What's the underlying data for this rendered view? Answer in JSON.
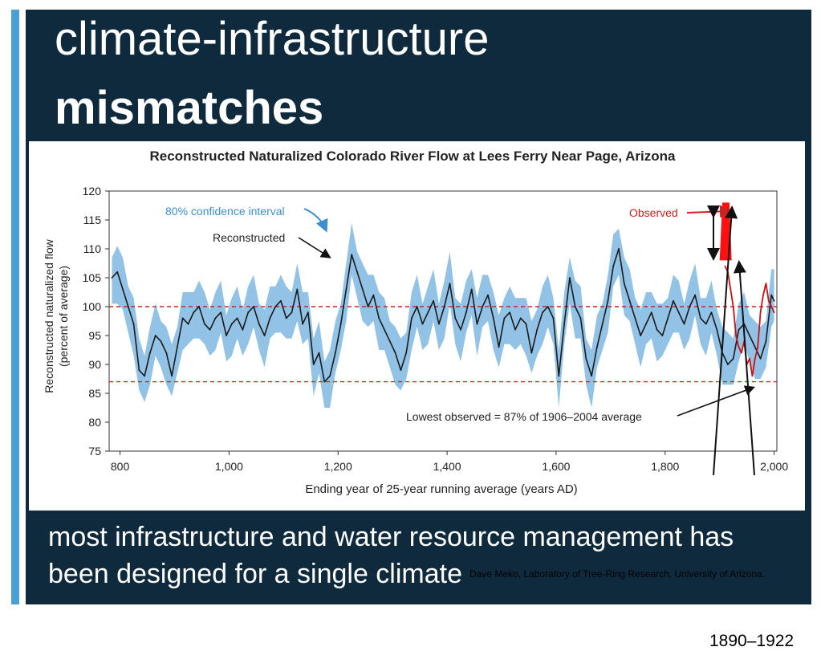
{
  "slide": {
    "title_line1": "climate-infrastructure",
    "title_line2": "mismatches",
    "caption": "most infrastructure and water resource management has been designed for a single climate",
    "credit": "Dave Meko, Laboratory of Tree-Ring Research, University of Arizona.",
    "period_label": "1890–1922",
    "colors": {
      "panel": "#0f2a3d",
      "accent": "#4a9fd5",
      "band": "#7fb8e2",
      "line": "#1a1a1a",
      "observed": "#cc1111",
      "reference": "#cc2222"
    }
  },
  "chart_data": {
    "type": "line",
    "title": "Reconstructed Naturalized Colorado River Flow at Lees Ferry Near Page, Arizona",
    "xlabel": "Ending year of 25-year running average (years AD)",
    "ylabel_line1": "Reconstructed naturalized flow",
    "ylabel_line2": "(percent of average)",
    "xlim": [
      780,
      2005
    ],
    "ylim": [
      75,
      120
    ],
    "xticks": [
      800,
      1000,
      1200,
      1400,
      1600,
      1800,
      2000
    ],
    "xtick_labels": [
      "800",
      "1,000",
      "1,200",
      "1,400",
      "1,600",
      "1,800",
      "2,000"
    ],
    "yticks": [
      75,
      80,
      85,
      90,
      95,
      100,
      105,
      110,
      115,
      120
    ],
    "ytick_labels": [
      "75",
      "80",
      "85",
      "90",
      "95",
      "100",
      "105",
      "110",
      "115",
      "120"
    ],
    "reference_lines": [
      {
        "y": 100
      },
      {
        "y": 87,
        "label": "Lowest observed = 87% of 1906–2004 average"
      }
    ],
    "annotations": {
      "confidence": "80% confidence interval",
      "reconstructed": "Reconstructed",
      "observed": "Observed"
    },
    "series": [
      {
        "name": "Reconstructed",
        "x": [
          785,
          795,
          805,
          815,
          825,
          835,
          845,
          855,
          865,
          875,
          885,
          895,
          905,
          915,
          925,
          935,
          945,
          955,
          965,
          975,
          985,
          995,
          1005,
          1015,
          1025,
          1035,
          1045,
          1055,
          1065,
          1075,
          1085,
          1095,
          1105,
          1115,
          1125,
          1135,
          1145,
          1155,
          1165,
          1175,
          1185,
          1195,
          1205,
          1215,
          1225,
          1235,
          1245,
          1255,
          1265,
          1275,
          1285,
          1295,
          1305,
          1315,
          1325,
          1335,
          1345,
          1355,
          1365,
          1375,
          1385,
          1395,
          1405,
          1415,
          1425,
          1435,
          1445,
          1455,
          1465,
          1475,
          1485,
          1495,
          1505,
          1515,
          1525,
          1535,
          1545,
          1555,
          1565,
          1575,
          1585,
          1595,
          1605,
          1615,
          1625,
          1635,
          1645,
          1655,
          1665,
          1675,
          1685,
          1695,
          1705,
          1715,
          1725,
          1735,
          1745,
          1755,
          1765,
          1775,
          1785,
          1795,
          1805,
          1815,
          1825,
          1835,
          1845,
          1855,
          1865,
          1875,
          1885,
          1895,
          1905,
          1915,
          1925,
          1935,
          1945,
          1955,
          1965,
          1975,
          1985,
          1995,
          2000
        ],
        "values": [
          105,
          106,
          103,
          100,
          97,
          89,
          88,
          92,
          95,
          94,
          92,
          88,
          93,
          98,
          97,
          99,
          100,
          97,
          96,
          98,
          99,
          95,
          97,
          98,
          96,
          99,
          100,
          97,
          95,
          98,
          100,
          101,
          98,
          99,
          103,
          97,
          99,
          90,
          92,
          87,
          88,
          92,
          97,
          103,
          109,
          106,
          103,
          100,
          102,
          98,
          96,
          94,
          92,
          89,
          92,
          98,
          100,
          97,
          99,
          101,
          97,
          100,
          104,
          98,
          96,
          99,
          103,
          97,
          100,
          102,
          98,
          93,
          98,
          99,
          96,
          98,
          97,
          92,
          96,
          99,
          100,
          98,
          88,
          97,
          105,
          100,
          98,
          91,
          88,
          93,
          97,
          101,
          107,
          110,
          104,
          101,
          98,
          95,
          97,
          99,
          96,
          95,
          98,
          101,
          99,
          97,
          100,
          102,
          98,
          97,
          99,
          96,
          92,
          90,
          91,
          96,
          97,
          95,
          93,
          91,
          94,
          102,
          101
        ]
      },
      {
        "name": "Observed",
        "x": [
          1910,
          1915,
          1920,
          1925,
          1930,
          1935,
          1940,
          1945,
          1950,
          1955,
          1960,
          1965,
          1970,
          1975,
          1980,
          1985,
          1990,
          1995,
          2000
        ],
        "values": [
          107,
          106,
          103,
          100,
          95,
          93,
          92,
          94,
          90,
          91,
          88,
          91,
          93,
          99,
          102,
          104,
          101,
          100,
          99
        ]
      }
    ]
  }
}
